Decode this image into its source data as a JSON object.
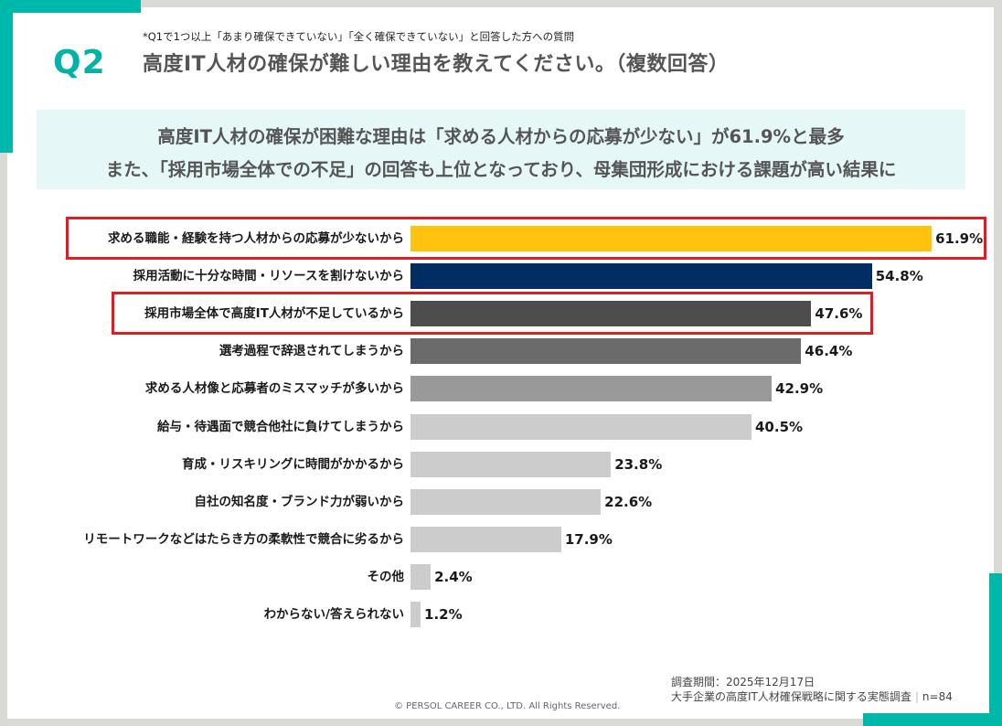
{
  "header": {
    "question_number": "Q2",
    "note": "*Q1で1つ以上「あまり確保できていない」「全く確保できていない」と回答した方への質問",
    "title": "高度IT人材の確保が難しい理由を教えてください。（複数回答）"
  },
  "summary": {
    "line1": "高度IT人材の確保が困難な理由は「求める人材からの応募が少ない」が61.9%と最多",
    "line2": "また、「採用市場全体での不足」の回答も上位となっており、母集団形成における課題が高い結果に"
  },
  "colors": {
    "accent": "#00b8a9",
    "highlight_border": "#e31b23",
    "summary_bg": "#e6f7f7"
  },
  "chart_data": {
    "type": "bar",
    "orientation": "horizontal",
    "title": "高度IT人材の確保が難しい理由を教えてください。（複数回答）",
    "xlabel": "",
    "ylabel": "",
    "unit": "%",
    "xlim": [
      0,
      62
    ],
    "grid": false,
    "legend": "none",
    "categories": [
      "求める職能・経験を持つ人材からの応募が少ないから",
      "採用活動に十分な時間・リソースを割けないから",
      "採用市場全体で高度IT人材が不足しているから",
      "選考過程で辞退されてしまうから",
      "求める人材像と応募者のミスマッチが多いから",
      "給与・待遇面で競合他社に負けてしまうから",
      "育成・リスキリングに時間がかかるから",
      "自社の知名度・ブランド力が弱いから",
      "リモートワークなどはたらき方の柔軟性で競合に劣るから",
      "その他",
      "わからない/答えられない"
    ],
    "values": [
      61.9,
      54.8,
      47.6,
      46.4,
      42.9,
      40.5,
      23.8,
      22.6,
      17.9,
      2.4,
      1.2
    ],
    "value_labels": [
      "61.9%",
      "54.8%",
      "47.6%",
      "46.4%",
      "42.9%",
      "40.5%",
      "23.8%",
      "22.6%",
      "17.9%",
      "2.4%",
      "1.2%"
    ],
    "bar_colors": [
      "#ffc20e",
      "#002d62",
      "#4d4d4d",
      "#6b6b6b",
      "#999999",
      "#cccccc",
      "#cccccc",
      "#cccccc",
      "#cccccc",
      "#cccccc",
      "#cccccc"
    ],
    "highlighted": [
      0,
      2
    ]
  },
  "footer": {
    "survey_period": "調査期間：2025年12月17日",
    "survey_name": "大手企業の高度IT人材確保戦略に関する実態調査",
    "sample_size": "n=84",
    "copyright": "© PERSOL CAREER CO., LTD. All Rights Reserved."
  }
}
